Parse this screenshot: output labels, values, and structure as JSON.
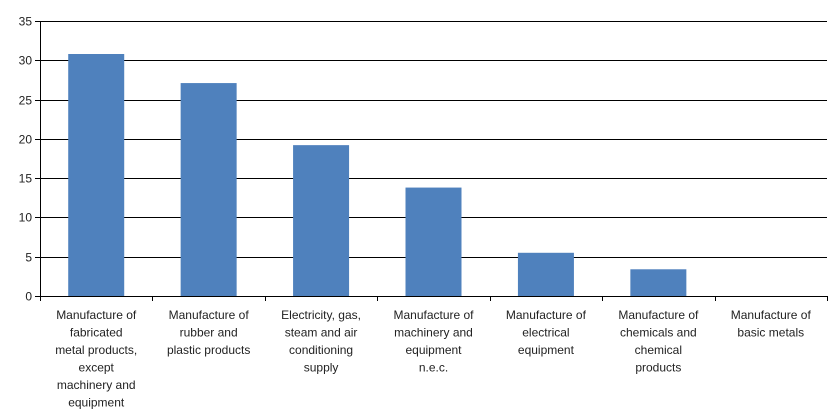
{
  "chart_data": {
    "type": "bar",
    "title": "",
    "xlabel": "",
    "ylabel": "",
    "ylim": [
      0,
      35
    ],
    "yticks": [
      0,
      5,
      10,
      15,
      20,
      25,
      30,
      35
    ],
    "grid": true,
    "legend": "none",
    "bar_color": "#4f81bd",
    "categories": [
      [
        "Manufacture of",
        "fabricated",
        "metal products,",
        "except",
        "machinery and",
        "equipment"
      ],
      [
        "Manufacture of",
        "rubber and",
        "plastic products"
      ],
      [
        "Electricity, gas,",
        "steam and air",
        "conditioning",
        "supply"
      ],
      [
        "Manufacture of",
        "machinery and",
        "equipment",
        "n.e.c."
      ],
      [
        "Manufacture of",
        "electrical",
        "equipment"
      ],
      [
        "Manufacture of",
        "chemicals and",
        "chemical",
        "products"
      ],
      [
        "Manufacture of",
        "basic metals"
      ]
    ],
    "values": [
      30.8,
      27.1,
      19.2,
      13.8,
      5.5,
      3.4,
      0
    ]
  }
}
